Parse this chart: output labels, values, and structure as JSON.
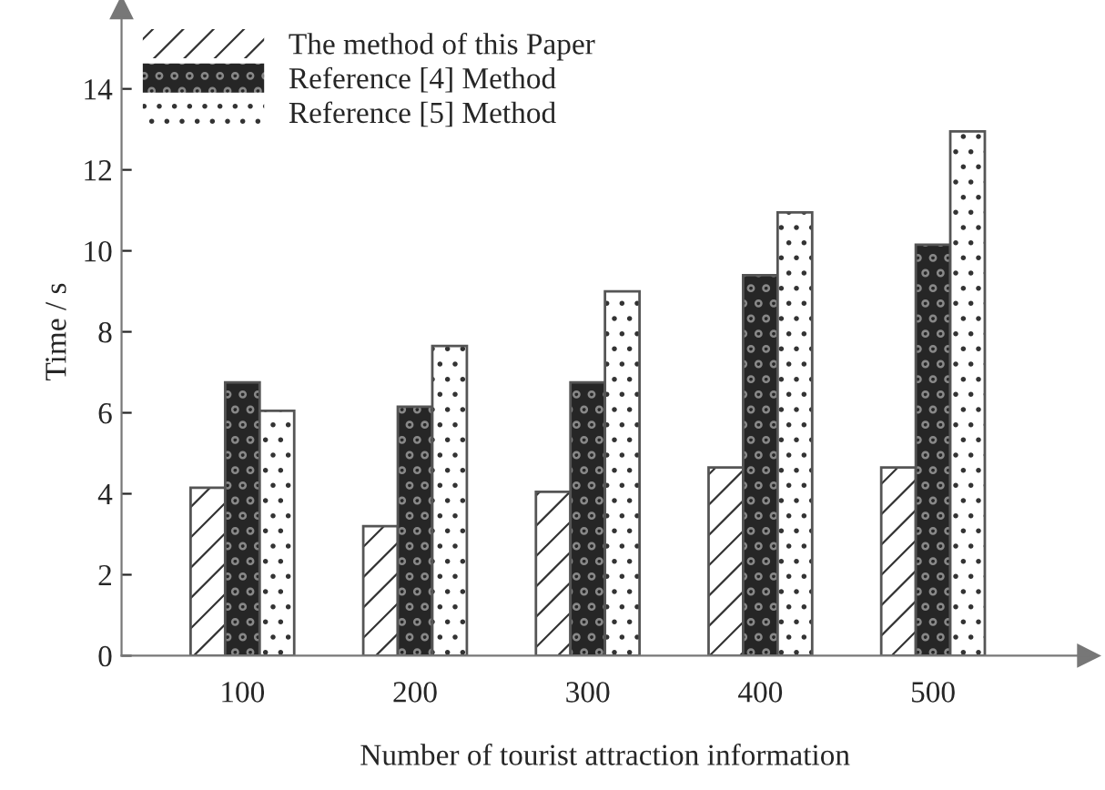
{
  "chart_data": {
    "type": "bar",
    "xlabel": "Number of tourist attraction information",
    "ylabel": "Time / s",
    "categories": [
      "100",
      "200",
      "300",
      "400",
      "500"
    ],
    "series": [
      {
        "name": "The method of this Paper",
        "color": "#ffffff",
        "values": [
          4.15,
          3.2,
          4.05,
          4.65,
          4.65
        ]
      },
      {
        "name": "Reference [4] Method",
        "color": "#262626",
        "values": [
          6.75,
          6.15,
          6.75,
          9.4,
          10.15
        ]
      },
      {
        "name": "Reference [5] Method",
        "color": "#ffffff",
        "values": [
          6.05,
          7.65,
          9.0,
          10.95,
          12.95
        ]
      }
    ],
    "ylim": [
      0,
      16
    ],
    "yticks": [
      0,
      2,
      4,
      6,
      8,
      10,
      12,
      14
    ],
    "grid": false,
    "legend": "top left"
  }
}
